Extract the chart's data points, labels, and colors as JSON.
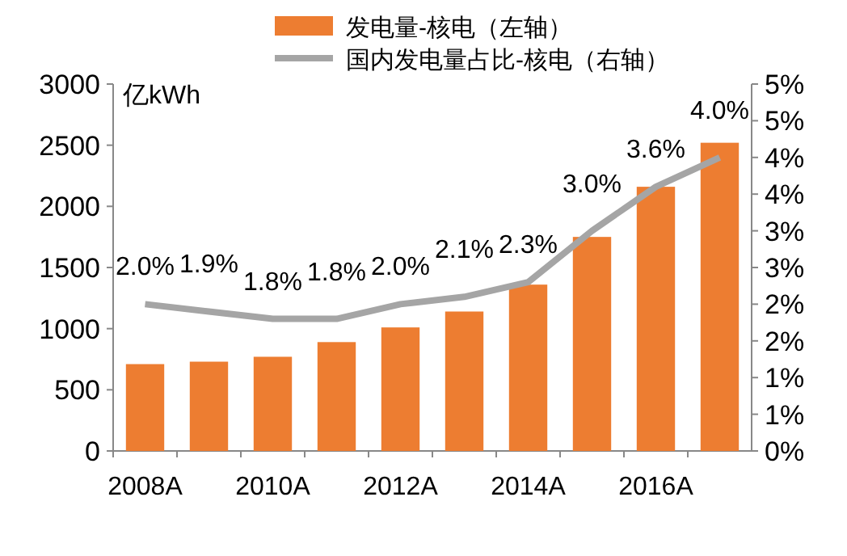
{
  "chart_data": {
    "type": "bar",
    "ylabel": "亿kWh",
    "categories": [
      "2008A",
      null,
      "2010A",
      null,
      "2012A",
      null,
      "2014A",
      null,
      "2016A",
      null
    ],
    "series": [
      {
        "name": "发电量-核电（左轴）",
        "color": "#ed7d31",
        "values": [
          710,
          730,
          770,
          890,
          1010,
          1140,
          1360,
          1750,
          2160,
          2520
        ]
      },
      {
        "name": "国内发电量占比-核电（右轴）",
        "type": "line",
        "axis": "y2",
        "color": "#a5a5a5",
        "values": [
          2.0,
          1.9,
          1.8,
          1.8,
          2.0,
          2.1,
          2.3,
          3.0,
          3.6,
          4.0
        ],
        "value_labels": [
          "2.0%",
          "1.9%",
          "1.8%",
          "1.8%",
          "2.0%",
          "2.1%",
          "2.3%",
          "3.0%",
          "3.6%",
          "4.0%"
        ]
      }
    ],
    "ylim": [
      0,
      3000
    ],
    "yticks": [
      0,
      500,
      1000,
      1500,
      2000,
      2500,
      3000
    ],
    "y2lim": [
      0,
      5
    ],
    "y2ticks": [
      {
        "value": 0,
        "label": "0%"
      },
      {
        "value": 0.5,
        "label": "1%"
      },
      {
        "value": 1,
        "label": "1%"
      },
      {
        "value": 1.5,
        "label": "2%"
      },
      {
        "value": 2,
        "label": "2%"
      },
      {
        "value": 2.5,
        "label": "3%"
      },
      {
        "value": 3,
        "label": "3%"
      },
      {
        "value": 3.5,
        "label": "4%"
      },
      {
        "value": 4,
        "label": "4%"
      },
      {
        "value": 4.5,
        "label": "5%"
      },
      {
        "value": 5,
        "label": "5%"
      }
    ],
    "grid": false,
    "legend": "top",
    "marker": "none"
  }
}
